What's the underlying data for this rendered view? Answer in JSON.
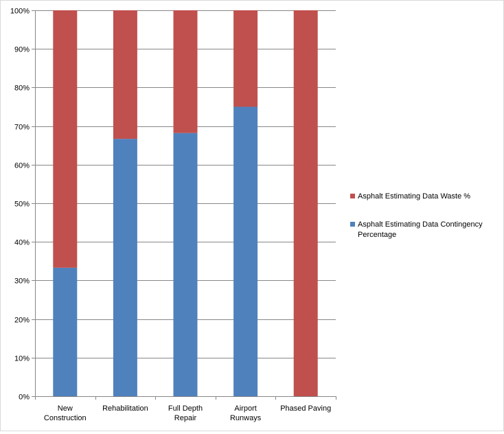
{
  "chart_data": {
    "type": "bar",
    "stacked": "percent",
    "categories": [
      "New Construction",
      "Rehabilitation",
      "Full Depth Repair",
      "Airport Runways",
      "Phased Paving"
    ],
    "category_label_lines": [
      [
        "New",
        "Construction"
      ],
      [
        "Rehabilitation"
      ],
      [
        "Full Depth",
        "Repair"
      ],
      [
        "Airport",
        "Runways"
      ],
      [
        "Phased Paving"
      ]
    ],
    "series": [
      {
        "name": "Asphalt Estimating Data Contingency Percentage",
        "color": "#4f81bd",
        "values": [
          33.3,
          66.7,
          68.2,
          75,
          0
        ]
      },
      {
        "name": "Asphalt Estimating Data Waste %",
        "color": "#c0504d",
        "values": [
          66.7,
          33.3,
          31.8,
          25,
          100
        ]
      }
    ],
    "legend_order": [
      1,
      0
    ],
    "legend_lines": [
      [
        "Asphalt Estimating Data Waste %"
      ],
      [
        "Asphalt Estimating Data Contingency",
        "Percentage"
      ]
    ],
    "y_ticks": [
      "0%",
      "10%",
      "20%",
      "30%",
      "40%",
      "50%",
      "60%",
      "70%",
      "80%",
      "90%",
      "100%"
    ],
    "ylim": [
      0,
      100
    ],
    "grid": true,
    "legend_position": "right",
    "title": "",
    "xlabel": "",
    "ylabel": ""
  }
}
